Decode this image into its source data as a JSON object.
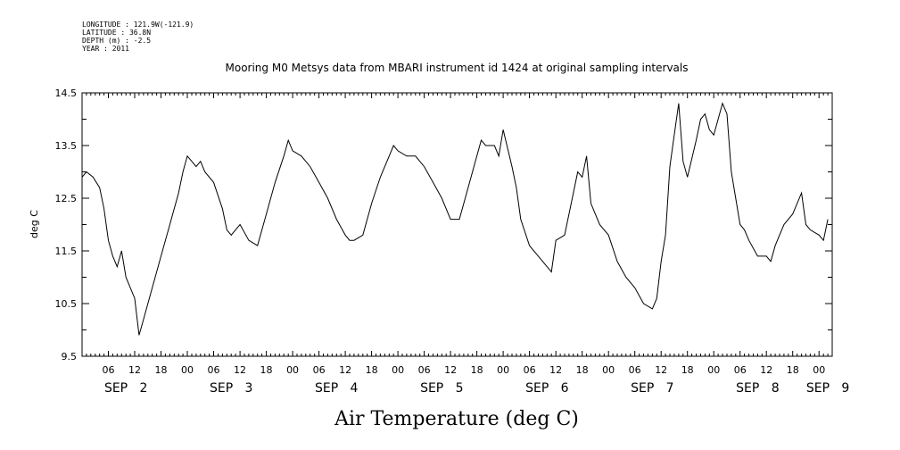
{
  "meta": [
    "LONGITUDE : 121.9W(-121.9)",
    "LATITUDE : 36.8N",
    "DEPTH (m) : -2.5",
    "YEAR : 2011"
  ],
  "chart_data": {
    "type": "line",
    "title": "Mooring M0 Metsys data from MBARI instrument id 1424 at original sampling intervals",
    "xlabel": "Air Temperature (deg C)",
    "ylabel": "deg C",
    "ylim": [
      9.5,
      14.5
    ],
    "yticks": [
      "9.5",
      "10.5",
      "11.5",
      "12.5",
      "13.5",
      "14.5"
    ],
    "xlim_hours": [
      0,
      171
    ],
    "hour_ticks": [
      {
        "h": 6,
        "label": "06"
      },
      {
        "h": 12,
        "label": "12"
      },
      {
        "h": 18,
        "label": "18"
      },
      {
        "h": 24,
        "label": "00"
      },
      {
        "h": 30,
        "label": "06"
      },
      {
        "h": 36,
        "label": "12"
      },
      {
        "h": 42,
        "label": "18"
      },
      {
        "h": 48,
        "label": "00"
      },
      {
        "h": 54,
        "label": "06"
      },
      {
        "h": 60,
        "label": "12"
      },
      {
        "h": 66,
        "label": "18"
      },
      {
        "h": 72,
        "label": "00"
      },
      {
        "h": 78,
        "label": "06"
      },
      {
        "h": 84,
        "label": "12"
      },
      {
        "h": 90,
        "label": "18"
      },
      {
        "h": 96,
        "label": "00"
      },
      {
        "h": 102,
        "label": "06"
      },
      {
        "h": 108,
        "label": "12"
      },
      {
        "h": 114,
        "label": "18"
      },
      {
        "h": 120,
        "label": "00"
      },
      {
        "h": 126,
        "label": "06"
      },
      {
        "h": 132,
        "label": "12"
      },
      {
        "h": 138,
        "label": "18"
      },
      {
        "h": 144,
        "label": "00"
      },
      {
        "h": 150,
        "label": "06"
      },
      {
        "h": 156,
        "label": "12"
      },
      {
        "h": 162,
        "label": "18"
      },
      {
        "h": 168,
        "label": "00"
      }
    ],
    "day_labels": [
      {
        "h": 10,
        "label": "SEP   2"
      },
      {
        "h": 34,
        "label": "SEP   3"
      },
      {
        "h": 58,
        "label": "SEP   4"
      },
      {
        "h": 82,
        "label": "SEP   5"
      },
      {
        "h": 106,
        "label": "SEP   6"
      },
      {
        "h": 130,
        "label": "SEP   7"
      },
      {
        "h": 154,
        "label": "SEP   8"
      },
      {
        "h": 170,
        "label": "SEP   9"
      }
    ],
    "series": [
      {
        "x": [
          0,
          1,
          2.5,
          4,
          5,
          6,
          7,
          8,
          9,
          10,
          11,
          12,
          13,
          14,
          15,
          16,
          17,
          18,
          20,
          22,
          23,
          24,
          25,
          26,
          27,
          28,
          30,
          32,
          33,
          34,
          35,
          36,
          38,
          40,
          42,
          44,
          46,
          47,
          48,
          50,
          52,
          54,
          56,
          58,
          60,
          61,
          62,
          64,
          66,
          68,
          70,
          71,
          72,
          74,
          76,
          78,
          80,
          82,
          83,
          84,
          86,
          88,
          90,
          91,
          92,
          94,
          95,
          96,
          98,
          99,
          100,
          102,
          104,
          106,
          107,
          108,
          110,
          112,
          113,
          114,
          115,
          116,
          118,
          120,
          122,
          124,
          126,
          128,
          130,
          131,
          132,
          133,
          134,
          135,
          136,
          137,
          138,
          140,
          141,
          142,
          143,
          144,
          145,
          146,
          147,
          148,
          149,
          150,
          151,
          152,
          154,
          156,
          157,
          158,
          160,
          162,
          164,
          165,
          166,
          168,
          169,
          170
        ],
        "y": [
          12.9,
          13.0,
          12.9,
          12.7,
          12.3,
          11.7,
          11.4,
          11.2,
          11.5,
          11.0,
          10.8,
          10.6,
          9.9,
          10.2,
          10.5,
          10.8,
          11.1,
          11.4,
          12.0,
          12.6,
          13.0,
          13.3,
          13.2,
          13.1,
          13.2,
          13.0,
          12.8,
          12.3,
          11.9,
          11.8,
          11.9,
          12.0,
          11.7,
          11.6,
          12.2,
          12.8,
          13.3,
          13.6,
          13.4,
          13.3,
          13.1,
          12.8,
          12.5,
          12.1,
          11.8,
          11.7,
          11.7,
          11.8,
          12.4,
          12.9,
          13.3,
          13.5,
          13.4,
          13.3,
          13.3,
          13.1,
          12.8,
          12.5,
          12.3,
          12.1,
          12.1,
          12.7,
          13.3,
          13.6,
          13.5,
          13.5,
          13.3,
          13.8,
          13.1,
          12.7,
          12.1,
          11.6,
          11.4,
          11.2,
          11.1,
          11.7,
          11.8,
          12.6,
          13.0,
          12.9,
          13.3,
          12.4,
          12.0,
          11.8,
          11.3,
          11.0,
          10.8,
          10.5,
          10.4,
          10.6,
          11.3,
          11.8,
          13.1,
          13.7,
          14.3,
          13.2,
          12.9,
          13.6,
          14.0,
          14.1,
          13.8,
          13.7,
          14.0,
          14.3,
          14.1,
          13.0,
          12.5,
          12.0,
          11.9,
          11.7,
          11.4,
          11.4,
          11.3,
          11.6,
          12.0,
          12.2,
          12.6,
          12.0,
          11.9,
          11.8,
          11.7,
          12.1
        ]
      }
    ]
  }
}
